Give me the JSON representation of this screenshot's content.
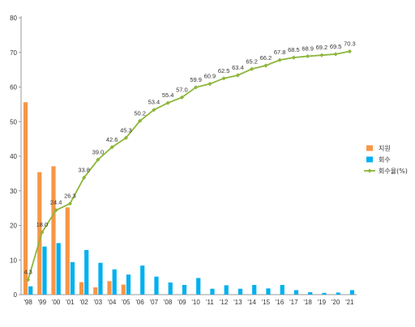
{
  "chart_data": {
    "type": "bar",
    "categories": [
      "'98",
      "'99",
      "'00",
      "'01",
      "'02",
      "'03",
      "'04",
      "'05",
      "'06",
      "'07",
      "'08",
      "'09",
      "'10",
      "'11",
      "'12",
      "'13",
      "'14",
      "'15",
      "'16",
      "'17",
      "'18",
      "'19",
      "'20",
      "'21"
    ],
    "ylim": [
      0,
      80
    ],
    "yticks": [
      "0",
      "10",
      "20",
      "30",
      "40",
      "50",
      "60",
      "70",
      "80"
    ],
    "grid": false,
    "legend_position": "right",
    "series": [
      {
        "name": "지원",
        "type": "bar",
        "color": "#F79646",
        "values": [
          55.6,
          35.4,
          37.1,
          25.2,
          3.6,
          2.1,
          3.9,
          2.9,
          0,
          0,
          0,
          0,
          0,
          0,
          0,
          0,
          0,
          0,
          0,
          0,
          0,
          0,
          0,
          0
        ]
      },
      {
        "name": "회수",
        "type": "bar",
        "color": "#00B0F0",
        "values": [
          2.4,
          13.9,
          14.9,
          9.4,
          12.9,
          9.2,
          7.3,
          5.8,
          8.4,
          5.2,
          3.5,
          2.8,
          4.8,
          1.7,
          2.7,
          1.7,
          2.8,
          1.8,
          2.8,
          1.3,
          0.7,
          0.5,
          0.6,
          1.3
        ]
      },
      {
        "name": "회수율(%)",
        "type": "line",
        "color": "#8DB63B",
        "values": [
          4.3,
          18.0,
          24.4,
          26.3,
          33.8,
          39.0,
          42.6,
          45.3,
          50.2,
          53.4,
          55.4,
          57.0,
          59.9,
          60.9,
          62.5,
          63.4,
          65.2,
          66.2,
          67.8,
          68.5,
          68.9,
          69.2,
          69.5,
          70.3
        ],
        "labels": [
          "4.3",
          "18.0",
          "24.4",
          "26.3",
          "33.8",
          "39.0",
          "42.6",
          "45.3",
          "50.2",
          "53.4",
          "55.4",
          "57.0",
          "59.9",
          "60.9",
          "62.5",
          "63.4",
          "65.2",
          "66.2",
          "67.8",
          "68.5",
          "68.9",
          "69.2",
          "69.5",
          "70.3"
        ]
      }
    ]
  }
}
